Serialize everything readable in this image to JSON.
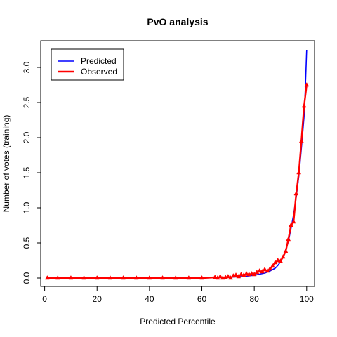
{
  "chart_data": {
    "type": "line",
    "title": "PvO analysis",
    "xlabel": "Predicted Percentile",
    "ylabel": "Number of votes (training)",
    "xlim": [
      -1.5,
      103
    ],
    "ylim": [
      -0.12,
      3.38
    ],
    "x_ticks": [
      0,
      20,
      40,
      60,
      80,
      100
    ],
    "x_tick_labels": [
      "0",
      "20",
      "40",
      "60",
      "80",
      "100"
    ],
    "y_ticks": [
      0,
      0.5,
      1,
      1.5,
      2,
      2.5,
      3
    ],
    "y_tick_labels": [
      "0.0",
      "0.5",
      "1.0",
      "1.5",
      "2.0",
      "2.5",
      "3.0"
    ],
    "grid": false,
    "legend_position": "top-left",
    "colors": {
      "predicted": "#0000ff",
      "observed": "#ff0000"
    },
    "series": [
      {
        "name": "Predicted",
        "x": [
          1,
          10,
          20,
          30,
          40,
          50,
          60,
          65,
          70,
          75,
          78,
          80,
          82,
          84,
          86,
          88,
          89,
          90,
          91,
          92,
          93,
          94,
          95,
          96,
          97,
          98,
          99,
          99.5,
          100
        ],
        "values": [
          0,
          0,
          0,
          0,
          0,
          0,
          0,
          0.005,
          0.01,
          0.02,
          0.03,
          0.04,
          0.055,
          0.07,
          0.1,
          0.14,
          0.18,
          0.23,
          0.3,
          0.4,
          0.52,
          0.7,
          0.9,
          1.15,
          1.45,
          1.85,
          2.3,
          2.7,
          3.25
        ]
      },
      {
        "name": "Observed",
        "x": [
          1,
          5,
          10,
          15,
          20,
          25,
          30,
          35,
          40,
          45,
          50,
          55,
          60,
          65,
          66,
          67,
          68,
          69,
          70,
          71,
          72,
          73,
          74,
          75,
          76,
          77,
          78,
          79,
          80,
          81,
          82,
          83,
          84,
          85,
          86,
          87,
          88,
          89,
          90,
          91,
          92,
          93,
          94,
          95,
          96,
          97,
          98,
          99,
          100
        ],
        "values": [
          0,
          0,
          0,
          0,
          0,
          0,
          0,
          0,
          0,
          0,
          0,
          0,
          0,
          0.01,
          0,
          0.02,
          0,
          0.01,
          0.02,
          0,
          0.03,
          0.04,
          0.02,
          0.05,
          0.04,
          0.06,
          0.05,
          0.06,
          0.05,
          0.08,
          0.1,
          0.09,
          0.12,
          0.1,
          0.13,
          0.17,
          0.22,
          0.25,
          0.24,
          0.3,
          0.38,
          0.55,
          0.75,
          0.8,
          1.2,
          1.5,
          1.95,
          2.45,
          2.75
        ]
      }
    ]
  }
}
